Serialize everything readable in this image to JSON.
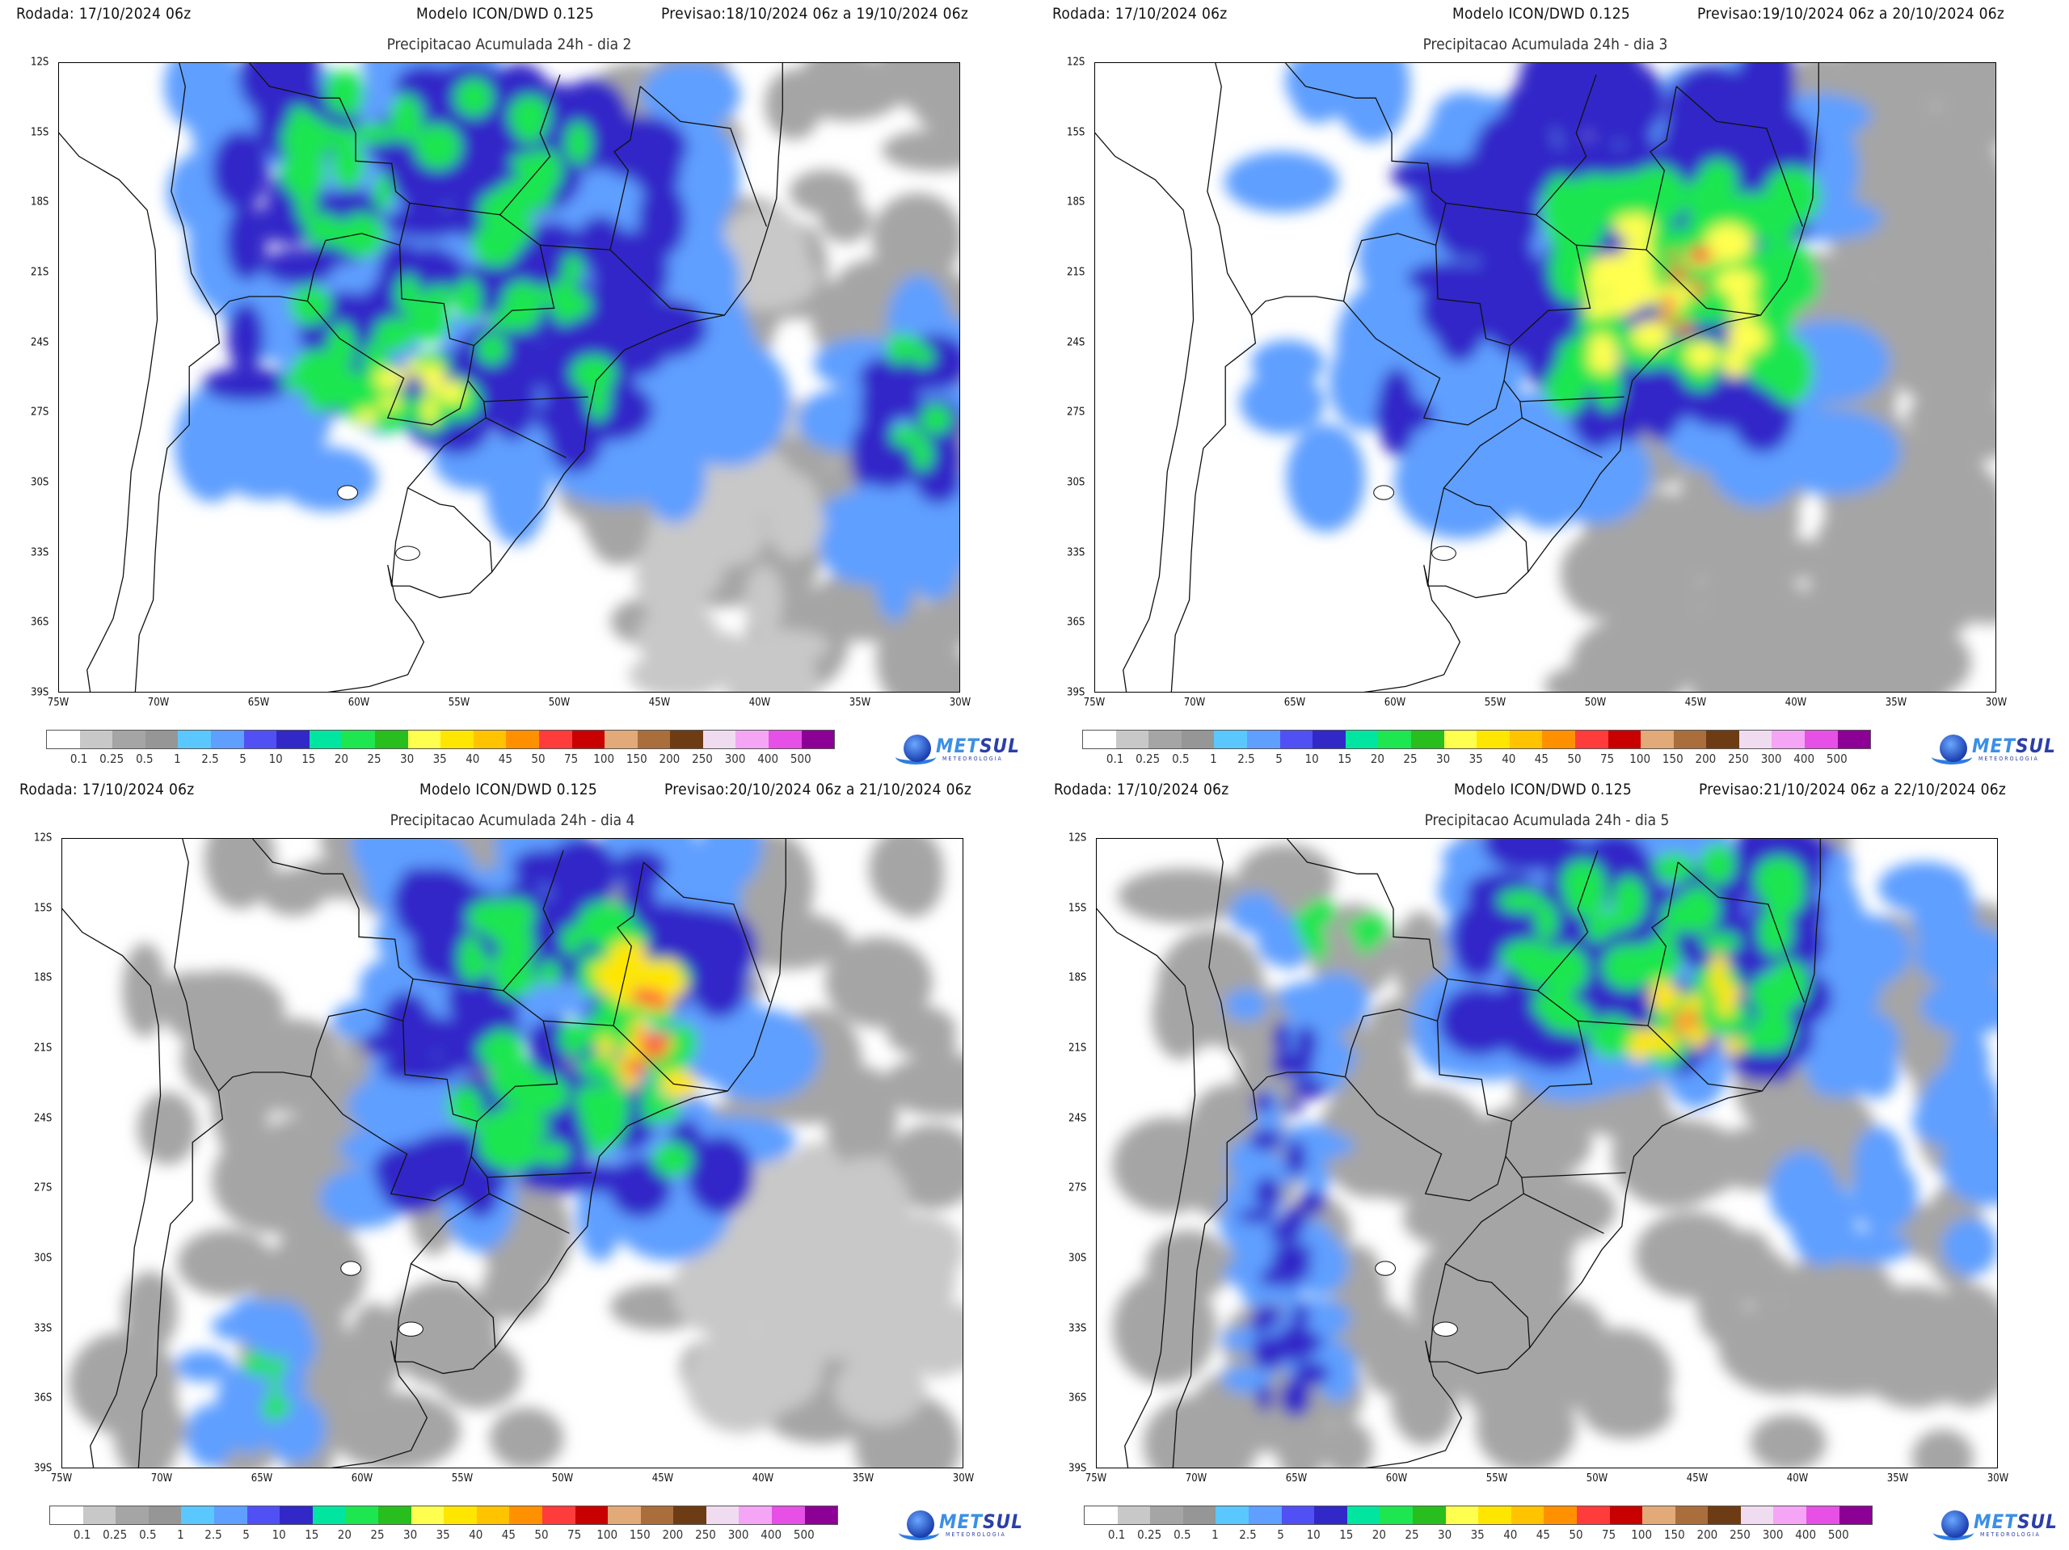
{
  "panels": [
    {
      "rodada": "Rodada: 17/10/2024 06z",
      "modelo": "Modelo ICON/DWD 0.125",
      "previsao": "Previsao:18/10/2024 06z a 19/10/2024 06z",
      "title": "Precipitacao Acumulada 24h - dia 2"
    },
    {
      "rodada": "Rodada: 17/10/2024 06z",
      "modelo": "Modelo ICON/DWD 0.125",
      "previsao": "Previsao:19/10/2024 06z a 20/10/2024 06z",
      "title": "Precipitacao Acumulada 24h - dia 3"
    },
    {
      "rodada": "Rodada: 17/10/2024 06z",
      "modelo": "Modelo ICON/DWD 0.125",
      "previsao": "Previsao:20/10/2024 06z a 21/10/2024 06z",
      "title": "Precipitacao Acumulada 24h - dia 4"
    },
    {
      "rodada": "Rodada: 17/10/2024 06z",
      "modelo": "Modelo ICON/DWD 0.125",
      "previsao": "Previsao:21/10/2024 06z a 22/10/2024 06z",
      "title": "Precipitacao Acumulada 24h - dia 5"
    }
  ],
  "map": {
    "lat_ticks": [
      "12S",
      "15S",
      "18S",
      "21S",
      "24S",
      "27S",
      "30S",
      "33S",
      "36S",
      "39S"
    ],
    "lon_ticks": [
      "75W",
      "70W",
      "65W",
      "60W",
      "55W",
      "50W",
      "45W",
      "40W",
      "35W",
      "30W"
    ],
    "lat_range": [
      -12,
      -39
    ],
    "lon_range": [
      -75,
      -30
    ]
  },
  "legend": {
    "labels": [
      "0.1",
      "0.25",
      "0.5",
      "1",
      "2.5",
      "5",
      "10",
      "15",
      "20",
      "25",
      "30",
      "35",
      "40",
      "45",
      "50",
      "75",
      "100",
      "150",
      "200",
      "250",
      "300",
      "400",
      "500"
    ],
    "colors": [
      "#ffffff",
      "#c8c8c8",
      "#a5a5a5",
      "#969696",
      "#5ac8ff",
      "#5f9fff",
      "#5050f5",
      "#3228c8",
      "#00e6a0",
      "#1ee650",
      "#28be1e",
      "#ffff50",
      "#ffe600",
      "#ffc300",
      "#ff9100",
      "#ff3c3c",
      "#c80000",
      "#e1aa78",
      "#aa6e3c",
      "#6e3c14",
      "#f0dcf0",
      "#f5a5f5",
      "#e650e6",
      "#8c0096"
    ]
  },
  "logo": {
    "name": "METSUL",
    "sub": "METEOROLOGIA"
  }
}
